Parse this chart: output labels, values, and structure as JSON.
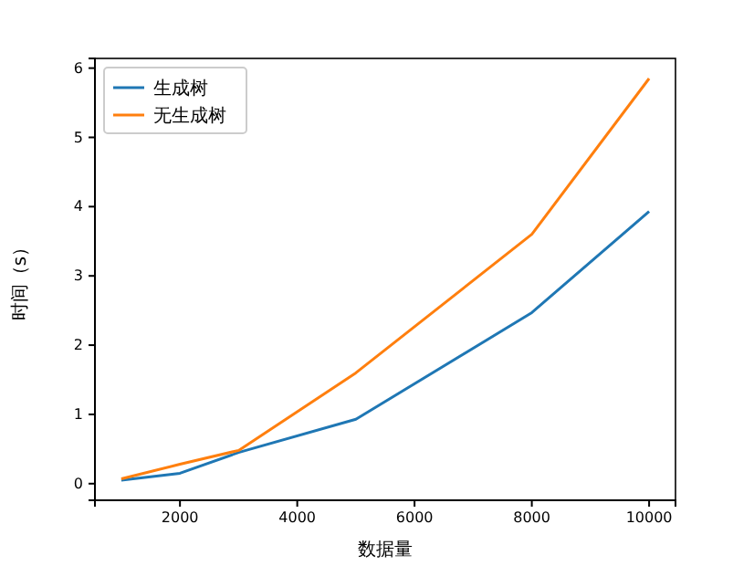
{
  "chart_data": {
    "type": "line",
    "xlabel": "数据量",
    "ylabel": "时间（s）",
    "x": [
      1000,
      2000,
      3000,
      5000,
      8000,
      10000
    ],
    "series": [
      {
        "name": "生成树",
        "color": "#1f77b4",
        "values": [
          0.05,
          0.15,
          0.45,
          0.93,
          2.47,
          3.93
        ]
      },
      {
        "name": "无生成树",
        "color": "#ff7f0e",
        "values": [
          0.07,
          0.28,
          0.48,
          1.6,
          3.6,
          5.85
        ]
      }
    ],
    "xlim": [
      550,
      10450
    ],
    "ylim": [
      -0.24,
      6.14
    ],
    "xticks": [
      2000,
      4000,
      6000,
      8000,
      10000
    ],
    "yticks": [
      0,
      1,
      2,
      3,
      4,
      5,
      6
    ],
    "legend": "top left",
    "grid": false,
    "marker": "none",
    "line_style": "solid"
  }
}
